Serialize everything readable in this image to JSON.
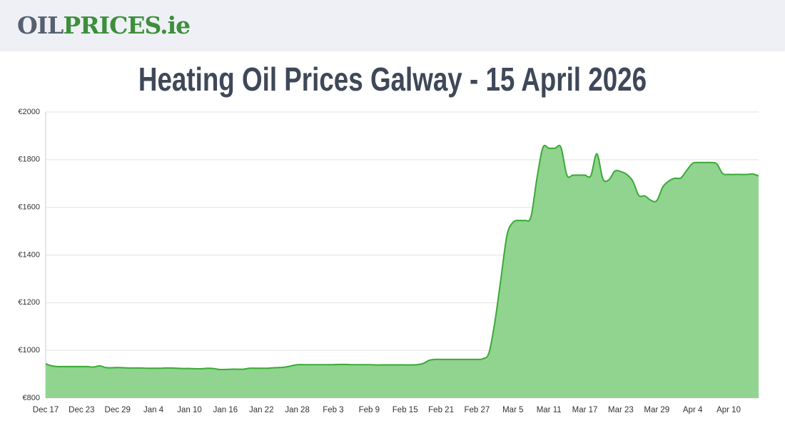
{
  "header": {
    "logo": [
      "OIL",
      "PRICES.ie"
    ]
  },
  "chart_data": {
    "type": "area",
    "title": "Heating Oil Prices Galway - 15 April 2026",
    "categories": [
      "Dec 17",
      null,
      null,
      null,
      null,
      null,
      "Dec 23",
      null,
      null,
      null,
      null,
      null,
      "Dec 29",
      null,
      null,
      null,
      null,
      null,
      "Jan 4",
      null,
      null,
      null,
      null,
      null,
      "Jan 10",
      null,
      null,
      null,
      null,
      null,
      "Jan 16",
      null,
      null,
      null,
      null,
      null,
      "Jan 22",
      null,
      null,
      null,
      null,
      null,
      "Jan 28",
      null,
      null,
      null,
      null,
      null,
      "Feb 3",
      null,
      null,
      null,
      null,
      null,
      "Feb 9",
      null,
      null,
      null,
      null,
      null,
      "Feb 15",
      null,
      null,
      null,
      null,
      null,
      "Feb 21",
      null,
      null,
      null,
      null,
      null,
      "Feb 27",
      null,
      null,
      null,
      null,
      null,
      "Mar 5",
      null,
      null,
      null,
      null,
      null,
      "Mar 11",
      null,
      null,
      null,
      null,
      null,
      "Mar 17",
      null,
      null,
      null,
      null,
      null,
      "Mar 23",
      null,
      null,
      null,
      null,
      null,
      "Mar 29",
      null,
      null,
      null,
      null,
      null,
      "Apr 4",
      null,
      null,
      null,
      null,
      null,
      "Apr 10",
      null,
      null,
      null,
      null,
      null
    ],
    "series": [
      {
        "color": "#3aaa35",
        "fill": "#90d48f",
        "values": [
          944,
          935,
          932,
          932,
          932,
          932,
          932,
          932,
          930,
          935,
          928,
          927,
          928,
          927,
          926,
          926,
          926,
          925,
          925,
          925,
          926,
          926,
          925,
          924,
          924,
          923,
          923,
          925,
          924,
          920,
          920,
          921,
          921,
          921,
          925,
          925,
          925,
          925,
          927,
          928,
          930,
          935,
          940,
          940,
          940,
          940,
          940,
          940,
          940,
          941,
          941,
          940,
          940,
          940,
          940,
          939,
          939,
          939,
          939,
          939,
          939,
          939,
          940,
          945,
          958,
          962,
          962,
          962,
          962,
          962,
          962,
          962,
          962,
          965,
          990,
          1123,
          1303,
          1483,
          1537,
          1545,
          1545,
          1560,
          1722,
          1851,
          1848,
          1848,
          1852,
          1735,
          1735,
          1735,
          1735,
          1733,
          1825,
          1720,
          1715,
          1752,
          1750,
          1738,
          1710,
          1650,
          1648,
          1630,
          1628,
          1685,
          1710,
          1722,
          1723,
          1755,
          1785,
          1788,
          1788,
          1788,
          1783,
          1742,
          1738,
          1738,
          1738,
          1738,
          1740,
          1732
        ]
      }
    ],
    "ylim": [
      800,
      2000
    ],
    "yticks": [
      {
        "value": 800,
        "label": "€800"
      },
      {
        "value": 1000,
        "label": "€1000"
      },
      {
        "value": 1200,
        "label": "€1200"
      },
      {
        "value": 1400,
        "label": "€1400"
      },
      {
        "value": 1600,
        "label": "€1600"
      },
      {
        "value": 1800,
        "label": "€1800"
      },
      {
        "value": 2000,
        "label": "€2000"
      }
    ],
    "grid": true
  }
}
